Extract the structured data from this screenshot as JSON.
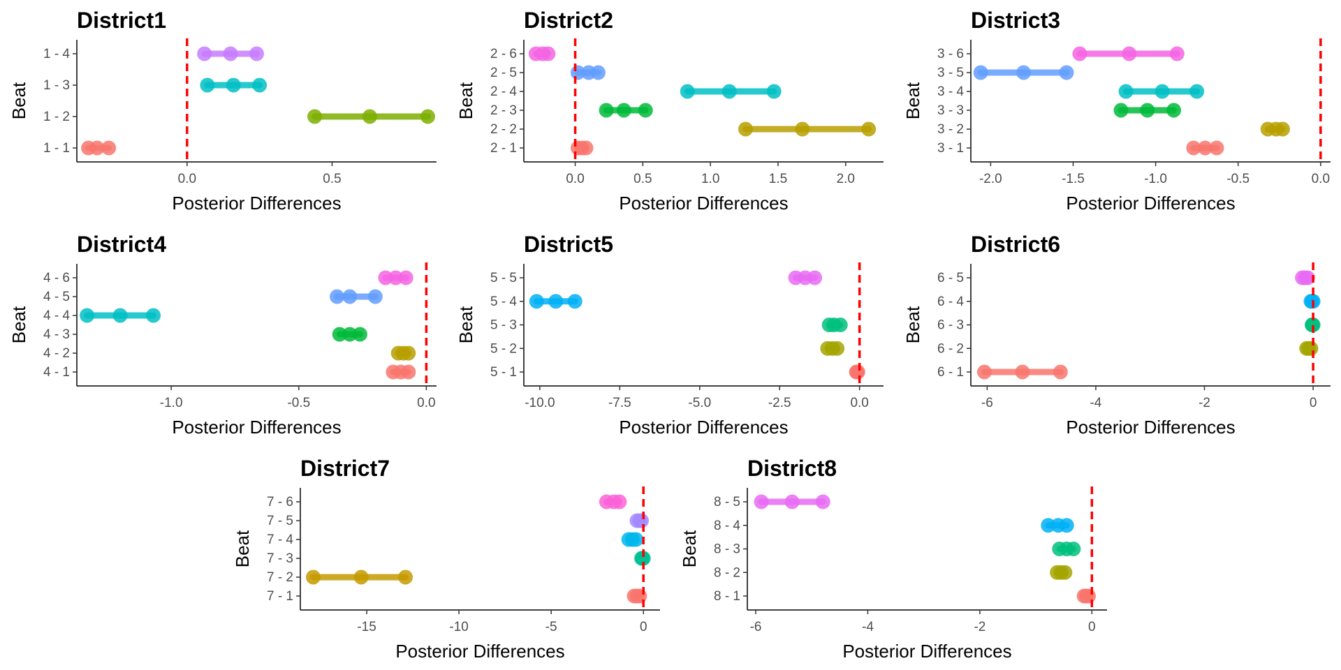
{
  "chart_data": [
    {
      "type": "dot-interval",
      "title": "District1",
      "xlabel": "Posterior Differences",
      "ylabel": "Beat",
      "xlim": [
        -0.38,
        0.86
      ],
      "xticks": [
        0.0,
        0.5
      ],
      "tick_labels": [
        "0.0",
        "0.5"
      ],
      "reference_line": 0,
      "grid": false,
      "series": [
        {
          "label": "1 - 1",
          "low": -0.34,
          "mid": -0.31,
          "high": -0.27,
          "color": "#F8766D"
        },
        {
          "label": "1 - 2",
          "low": 0.44,
          "mid": 0.63,
          "high": 0.83,
          "color": "#7CAE00"
        },
        {
          "label": "1 - 3",
          "low": 0.07,
          "mid": 0.16,
          "high": 0.25,
          "color": "#00BFC4"
        },
        {
          "label": "1 - 4",
          "low": 0.06,
          "mid": 0.15,
          "high": 0.24,
          "color": "#C77CFF"
        }
      ]
    },
    {
      "type": "dot-interval",
      "title": "District2",
      "xlabel": "Posterior Differences",
      "ylabel": "Beat",
      "xlim": [
        -0.38,
        2.28
      ],
      "xticks": [
        0.0,
        0.5,
        1.0,
        1.5,
        2.0
      ],
      "tick_labels": [
        "0.0",
        "0.5",
        "1.0",
        "1.5",
        "2.0"
      ],
      "reference_line": 0,
      "grid": false,
      "series": [
        {
          "label": "2 - 1",
          "low": 0.02,
          "mid": 0.05,
          "high": 0.08,
          "color": "#F8766D"
        },
        {
          "label": "2 - 2",
          "low": 1.26,
          "mid": 1.68,
          "high": 2.17,
          "color": "#B79F00"
        },
        {
          "label": "2 - 3",
          "low": 0.23,
          "mid": 0.36,
          "high": 0.52,
          "color": "#00BA38"
        },
        {
          "label": "2 - 4",
          "low": 0.83,
          "mid": 1.14,
          "high": 1.47,
          "color": "#00BFC4"
        },
        {
          "label": "2 - 5",
          "low": 0.02,
          "mid": 0.1,
          "high": 0.17,
          "color": "#619CFF"
        },
        {
          "label": "2 - 6",
          "low": -0.29,
          "mid": -0.24,
          "high": -0.2,
          "color": "#F564E3"
        }
      ]
    },
    {
      "type": "dot-interval",
      "title": "District3",
      "xlabel": "Posterior Differences",
      "ylabel": "Beat",
      "xlim": [
        -2.12,
        0.06
      ],
      "xticks": [
        -2.0,
        -1.5,
        -1.0,
        -0.5,
        0.0
      ],
      "tick_labels": [
        "-2.0",
        "-1.5",
        "-1.0",
        "-0.5",
        "0.0"
      ],
      "reference_line": 0,
      "grid": false,
      "series": [
        {
          "label": "3 - 1",
          "low": -0.77,
          "mid": -0.7,
          "high": -0.63,
          "color": "#F8766D"
        },
        {
          "label": "3 - 2",
          "low": -0.32,
          "mid": -0.27,
          "high": -0.23,
          "color": "#B79F00"
        },
        {
          "label": "3 - 3",
          "low": -1.21,
          "mid": -1.05,
          "high": -0.89,
          "color": "#00BA38"
        },
        {
          "label": "3 - 4",
          "low": -1.18,
          "mid": -0.96,
          "high": -0.75,
          "color": "#00BFC4"
        },
        {
          "label": "3 - 5",
          "low": -2.06,
          "mid": -1.8,
          "high": -1.54,
          "color": "#619CFF"
        },
        {
          "label": "3 - 6",
          "low": -1.46,
          "mid": -1.16,
          "high": -0.87,
          "color": "#F564E3"
        }
      ]
    },
    {
      "type": "dot-interval",
      "title": "District4",
      "xlabel": "Posterior Differences",
      "ylabel": "Beat",
      "xlim": [
        -1.37,
        0.04
      ],
      "xticks": [
        -1.0,
        -0.5,
        0.0
      ],
      "tick_labels": [
        "-1.0",
        "-0.5",
        "0.0"
      ],
      "reference_line": 0,
      "grid": false,
      "series": [
        {
          "label": "4 - 1",
          "low": -0.13,
          "mid": -0.1,
          "high": -0.07,
          "color": "#F8766D"
        },
        {
          "label": "4 - 2",
          "low": -0.11,
          "mid": -0.09,
          "high": -0.07,
          "color": "#B79F00"
        },
        {
          "label": "4 - 3",
          "low": -0.34,
          "mid": -0.3,
          "high": -0.26,
          "color": "#00BA38"
        },
        {
          "label": "4 - 4",
          "low": -1.33,
          "mid": -1.2,
          "high": -1.07,
          "color": "#00BFC4"
        },
        {
          "label": "4 - 5",
          "low": -0.35,
          "mid": -0.3,
          "high": -0.2,
          "color": "#619CFF"
        },
        {
          "label": "4 - 6",
          "low": -0.16,
          "mid": -0.12,
          "high": -0.08,
          "color": "#F564E3"
        }
      ]
    },
    {
      "type": "dot-interval",
      "title": "District5",
      "xlabel": "Posterior Differences",
      "ylabel": "Beat",
      "xlim": [
        -10.5,
        0.75
      ],
      "xticks": [
        -10.0,
        -7.5,
        -5.0,
        -2.5,
        0.0
      ],
      "tick_labels": [
        "-10.0",
        "-7.5",
        "-5.0",
        "-2.5",
        "0.0"
      ],
      "reference_line": 0,
      "grid": false,
      "series": [
        {
          "label": "5 - 1",
          "low": -0.1,
          "mid": -0.08,
          "high": -0.05,
          "color": "#F8766D"
        },
        {
          "label": "5 - 2",
          "low": -1.0,
          "mid": -0.85,
          "high": -0.7,
          "color": "#A3A500"
        },
        {
          "label": "5 - 3",
          "low": -0.95,
          "mid": -0.8,
          "high": -0.6,
          "color": "#00BF7D"
        },
        {
          "label": "5 - 4",
          "low": -10.1,
          "mid": -9.5,
          "high": -8.9,
          "color": "#00B0F6"
        },
        {
          "label": "5 - 5",
          "low": -2.0,
          "mid": -1.7,
          "high": -1.4,
          "color": "#E76BF3"
        }
      ]
    },
    {
      "type": "dot-interval",
      "title": "District6",
      "xlabel": "Posterior Differences",
      "ylabel": "Beat",
      "xlim": [
        -6.3,
        0.32
      ],
      "xticks": [
        -6,
        -4,
        -2,
        0
      ],
      "tick_labels": [
        "-6",
        "-4",
        "-2",
        "0"
      ],
      "reference_line": 0,
      "grid": false,
      "series": [
        {
          "label": "6 - 1",
          "low": -6.05,
          "mid": -5.35,
          "high": -4.65,
          "color": "#F8766D"
        },
        {
          "label": "6 - 2",
          "low": -0.12,
          "mid": -0.08,
          "high": -0.04,
          "color": "#A3A500"
        },
        {
          "label": "6 - 3",
          "low": -0.02,
          "mid": -0.01,
          "high": 0.0,
          "color": "#00BF7D"
        },
        {
          "label": "6 - 4",
          "low": -0.04,
          "mid": -0.02,
          "high": 0.0,
          "color": "#00B0F6"
        },
        {
          "label": "6 - 5",
          "low": -0.2,
          "mid": -0.15,
          "high": -0.1,
          "color": "#E76BF3"
        }
      ]
    },
    {
      "type": "dot-interval",
      "title": "District7",
      "xlabel": "Posterior Differences",
      "ylabel": "Beat",
      "xlim": [
        -18.6,
        0.9
      ],
      "xticks": [
        -15,
        -10,
        -5,
        0
      ],
      "tick_labels": [
        "-15",
        "-10",
        "-5",
        "0"
      ],
      "reference_line": 0,
      "grid": false,
      "series": [
        {
          "label": "7 - 1",
          "low": -0.5,
          "mid": -0.35,
          "high": -0.2,
          "color": "#F8766D"
        },
        {
          "label": "7 - 2",
          "low": -17.9,
          "mid": -15.3,
          "high": -12.9,
          "color": "#C49A00"
        },
        {
          "label": "7 - 3",
          "low": -0.1,
          "mid": -0.05,
          "high": 0.0,
          "color": "#00C094"
        },
        {
          "label": "7 - 4",
          "low": -0.8,
          "mid": -0.6,
          "high": -0.4,
          "color": "#00B6EB"
        },
        {
          "label": "7 - 5",
          "low": -0.35,
          "mid": -0.2,
          "high": -0.1,
          "color": "#A58AFF"
        },
        {
          "label": "7 - 6",
          "low": -2.0,
          "mid": -1.6,
          "high": -1.3,
          "color": "#FB61D7"
        }
      ]
    },
    {
      "type": "dot-interval",
      "title": "District8",
      "xlabel": "Posterior Differences",
      "ylabel": "Beat",
      "xlim": [
        -6.15,
        0.27
      ],
      "xticks": [
        -6,
        -4,
        -2,
        0
      ],
      "tick_labels": [
        "-6",
        "-4",
        "-2",
        "0"
      ],
      "reference_line": 0,
      "grid": false,
      "series": [
        {
          "label": "8 - 1",
          "low": -0.14,
          "mid": -0.1,
          "high": -0.06,
          "color": "#F8766D"
        },
        {
          "label": "8 - 2",
          "low": -0.62,
          "mid": -0.55,
          "high": -0.48,
          "color": "#A3A500"
        },
        {
          "label": "8 - 3",
          "low": -0.58,
          "mid": -0.45,
          "high": -0.33,
          "color": "#00BF7D"
        },
        {
          "label": "8 - 4",
          "low": -0.78,
          "mid": -0.6,
          "high": -0.45,
          "color": "#00B0F6"
        },
        {
          "label": "8 - 5",
          "low": -5.9,
          "mid": -5.35,
          "high": -4.8,
          "color": "#E76BF3"
        }
      ]
    }
  ]
}
